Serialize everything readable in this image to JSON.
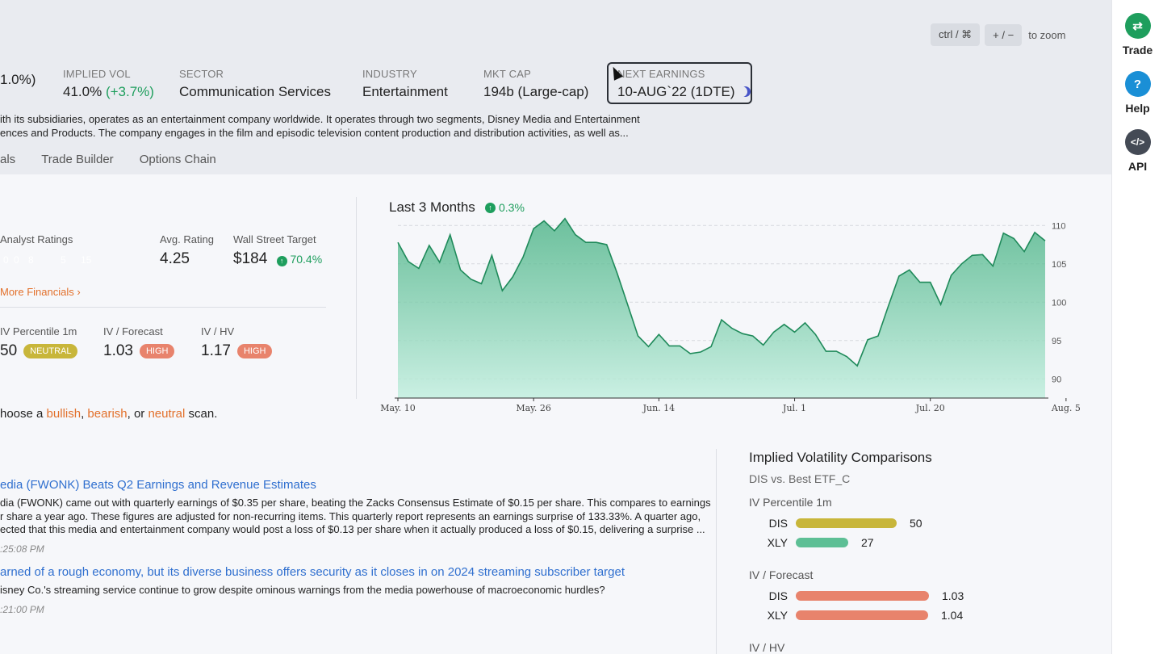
{
  "zoom": {
    "key1": "ctrl / ⌘",
    "key2": "+ / −",
    "text": "to zoom"
  },
  "stats": [
    {
      "label": "",
      "value_suffix": "1.0%)",
      "color": "#d9463b"
    },
    {
      "label": "IMPLIED VOL",
      "value": "41.0%",
      "change": "(+3.7%)"
    },
    {
      "label": "SECTOR",
      "value": "Communication Services"
    },
    {
      "label": "INDUSTRY",
      "value": "Entertainment"
    },
    {
      "label": "MKT CAP",
      "value": "194b (Large-cap)"
    },
    {
      "label": "NEXT EARNINGS",
      "value": "10-AUG`22 (1DTE)"
    }
  ],
  "description": {
    "line1": "ith its subsidiaries, operates as an entertainment company worldwide. It operates through two segments, Disney Media and Entertainment",
    "line2": "ences and Products. The company engages in the film and episodic television content production and distribution activities, as well as..."
  },
  "tabs": [
    "als",
    "Trade Builder",
    "Options Chain"
  ],
  "financials": {
    "analyst_label": "Analyst Ratings",
    "rating_counts": [
      "0",
      "0",
      "8",
      "5",
      "15"
    ],
    "rating_colors": [
      "#d9463b",
      "#e8836c",
      "#c8b63a",
      "#5dbf95",
      "#1e9e5d"
    ],
    "avg_label": "Avg. Rating",
    "avg_value": "4.25",
    "target_label": "Wall Street Target",
    "target_value": "$184",
    "target_change": "70.4%",
    "more": "More Financials ›",
    "ivp_label": "IV Percentile 1m",
    "ivp_value": "50",
    "ivp_pill": "NEUTRAL",
    "ivf_label": "IV / Forecast",
    "ivf_value": "1.03",
    "ivf_pill": "HIGH",
    "ivhv_label": "IV / HV",
    "ivhv_value": "1.17",
    "ivhv_pill": "HIGH"
  },
  "scan": {
    "pre": "hoose a ",
    "bull": "bullish",
    "sep1": ", ",
    "bear": "bearish",
    "sep2": ", or ",
    "neutral": "neutral",
    "post": " scan."
  },
  "chart_data": {
    "type": "area",
    "title": "Last 3 Months",
    "change": "0.3%",
    "y_ticks": [
      110,
      105,
      100,
      95,
      90
    ],
    "ylim": [
      87.5,
      111.5
    ],
    "x_labels": [
      "May. 10",
      "May. 26",
      "Jun. 14",
      "Jul. 1",
      "Jul. 20",
      "Aug. 5"
    ],
    "x_label_index": [
      0,
      13,
      25,
      38,
      51,
      64
    ],
    "values": [
      107.8,
      105.3,
      104.4,
      107.4,
      105.2,
      108.8,
      104.2,
      103.0,
      102.4,
      106.1,
      101.5,
      103.3,
      105.9,
      109.6,
      110.6,
      109.3,
      110.9,
      108.8,
      107.8,
      107.8,
      107.5,
      103.8,
      99.7,
      95.6,
      94.2,
      95.8,
      94.3,
      94.3,
      93.3,
      93.5,
      94.2,
      97.7,
      96.6,
      95.9,
      95.6,
      94.4,
      96.1,
      97.1,
      96.1,
      97.3,
      95.8,
      93.6,
      93.6,
      92.9,
      91.7,
      95.1,
      95.6,
      99.6,
      103.4,
      104.2,
      102.6,
      102.6,
      99.7,
      103.5,
      105.0,
      106.1,
      106.2,
      104.7,
      109.0,
      108.3,
      106.6,
      109.1,
      108.0
    ]
  },
  "news": [
    {
      "title": "edia (FWONK) Beats Q2 Earnings and Revenue Estimates",
      "l1": "dia (FWONK) came out with quarterly earnings of $0.35 per share, beating the Zacks Consensus Estimate of $0.15 per share. This compares to earnings",
      "l2": "r share a year ago. These figures are adjusted for non-recurring items. This quarterly report represents an earnings surprise of 133.33%. A quarter ago,",
      "l3": "ected that this media and entertainment company would post a loss of $0.13 per share when it actually produced a loss of $0.15, delivering a surprise ...",
      "time": ":25:08 PM"
    },
    {
      "title": "arned of a rough economy, but its diverse business offers security as it closes in on 2024 streaming subscriber target",
      "l1": "isney Co.'s streaming service continue to grow despite ominous warnings from the media powerhouse of macroeconomic hurdles?",
      "time": ":21:00 PM"
    }
  ],
  "ivc": {
    "title": "Implied Volatility Comparisons",
    "sub": "DIS vs. Best ETF_C",
    "sections": [
      {
        "label": "IV Percentile 1m",
        "rows": [
          {
            "ticker": "DIS",
            "value": "50",
            "frac": 0.5,
            "color": "#c8b63a"
          },
          {
            "ticker": "XLY",
            "value": "27",
            "frac": 0.27,
            "color": "#5dbf95"
          }
        ]
      },
      {
        "label": "IV / Forecast",
        "rows": [
          {
            "ticker": "DIS",
            "value": "1.03",
            "frac": 0.66,
            "color": "#e8836c"
          },
          {
            "ticker": "XLY",
            "value": "1.04",
            "frac": 0.68,
            "color": "#e8836c"
          }
        ]
      },
      {
        "label": "IV / HV",
        "rows": []
      }
    ]
  },
  "rightbar": [
    {
      "label": "Trade",
      "icon": "⇄",
      "color": "#1e9e5d"
    },
    {
      "label": "Help",
      "icon": "?",
      "color": "#1a8fd6"
    },
    {
      "label": "API",
      "icon": "</>",
      "color": "#444a55"
    }
  ]
}
